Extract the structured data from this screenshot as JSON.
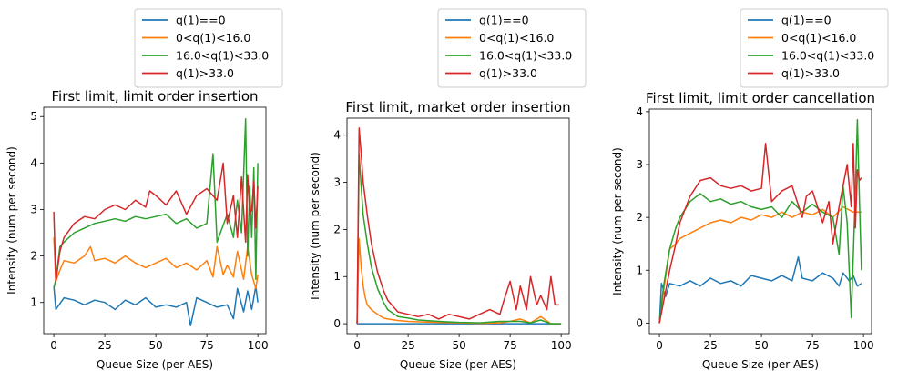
{
  "chart_data": [
    {
      "type": "line",
      "title": "First limit, limit order insertion",
      "xlabel": "Queue Size (per AES)",
      "ylabel": "Intensity (num per second)",
      "xlim": [
        -4.95,
        103.95
      ],
      "ylim": [
        0.33,
        5.2
      ],
      "xticks": [
        0,
        25,
        50,
        75,
        100
      ],
      "yticks": [
        1,
        2,
        3,
        4,
        5
      ],
      "legend_position": "above",
      "series": [
        {
          "name": "q(1)==0",
          "color": "#1f77b4",
          "x": [
            0,
            1,
            5,
            10,
            15,
            20,
            25,
            30,
            35,
            40,
            45,
            50,
            55,
            60,
            65,
            67,
            70,
            75,
            80,
            85,
            88,
            90,
            93,
            95,
            97,
            99,
            100
          ],
          "y": [
            1.35,
            0.85,
            1.1,
            1.05,
            0.95,
            1.05,
            1.0,
            0.85,
            1.05,
            0.95,
            1.1,
            0.9,
            0.95,
            0.9,
            1.0,
            0.5,
            1.1,
            1.0,
            0.9,
            0.95,
            0.65,
            1.3,
            0.8,
            1.25,
            0.85,
            1.35,
            1.0
          ]
        },
        {
          "name": "0<q(1)<16.0",
          "color": "#ff7f0e",
          "x": [
            0,
            1,
            3,
            5,
            10,
            15,
            18,
            20,
            25,
            30,
            35,
            40,
            45,
            50,
            55,
            60,
            65,
            70,
            75,
            78,
            80,
            83,
            85,
            88,
            90,
            93,
            95,
            97,
            99,
            100
          ],
          "y": [
            2.4,
            1.45,
            1.7,
            1.9,
            1.85,
            2.0,
            2.2,
            1.9,
            1.95,
            1.85,
            2.0,
            1.85,
            1.75,
            1.85,
            1.95,
            1.75,
            1.85,
            1.7,
            1.9,
            1.55,
            2.2,
            1.6,
            1.8,
            1.55,
            2.1,
            1.5,
            2.2,
            1.6,
            1.3,
            1.6
          ]
        },
        {
          "name": "16.0<q(1)<33.0",
          "color": "#2ca02c",
          "x": [
            0,
            1,
            3,
            5,
            10,
            15,
            20,
            25,
            30,
            35,
            40,
            45,
            50,
            55,
            60,
            65,
            70,
            75,
            78,
            80,
            85,
            88,
            90,
            92,
            94,
            95,
            96,
            97,
            98,
            99,
            100
          ],
          "y": [
            1.3,
            1.5,
            2.2,
            2.3,
            2.5,
            2.6,
            2.7,
            2.75,
            2.8,
            2.75,
            2.85,
            2.8,
            2.85,
            2.9,
            2.7,
            2.8,
            2.6,
            2.7,
            4.2,
            2.3,
            2.9,
            2.4,
            3.2,
            2.5,
            4.95,
            2.0,
            3.5,
            2.4,
            3.9,
            1.5,
            4.0
          ]
        },
        {
          "name": "q(1)>33.0",
          "color": "#d62728",
          "x": [
            0,
            1,
            3,
            5,
            10,
            15,
            20,
            25,
            30,
            35,
            40,
            45,
            47,
            50,
            55,
            60,
            65,
            70,
            75,
            80,
            83,
            85,
            88,
            90,
            92,
            94,
            95,
            96,
            97,
            98,
            99,
            100
          ],
          "y": [
            2.95,
            1.45,
            2.1,
            2.4,
            2.7,
            2.85,
            2.8,
            3.0,
            3.1,
            3.0,
            3.2,
            3.05,
            3.4,
            3.3,
            3.1,
            3.4,
            2.9,
            3.3,
            3.45,
            3.2,
            4.0,
            2.7,
            3.3,
            2.4,
            3.7,
            2.3,
            3.75,
            2.9,
            3.0,
            3.6,
            2.6,
            3.5
          ]
        }
      ]
    },
    {
      "type": "line",
      "title": "First limit, market order insertion",
      "xlabel": "Queue Size (per AES)",
      "ylabel": "Intensity (num per second)",
      "xlim": [
        -4.95,
        103.95
      ],
      "ylim": [
        -0.21,
        4.36
      ],
      "xticks": [
        0,
        25,
        50,
        75,
        100
      ],
      "yticks": [
        0,
        1,
        2,
        3,
        4
      ],
      "legend_position": "above",
      "series": [
        {
          "name": "q(1)==0",
          "color": "#1f77b4",
          "x": [
            0,
            100
          ],
          "y": [
            0,
            0
          ]
        },
        {
          "name": "0<q(1)<16.0",
          "color": "#ff7f0e",
          "x": [
            0,
            1,
            2,
            3,
            4,
            5,
            7,
            10,
            13,
            15,
            20,
            25,
            30,
            40,
            50,
            60,
            70,
            75,
            80,
            85,
            90,
            95,
            100
          ],
          "y": [
            0,
            1.8,
            1.2,
            0.8,
            0.55,
            0.4,
            0.3,
            0.2,
            0.12,
            0.1,
            0.07,
            0.05,
            0.04,
            0.03,
            0.02,
            0.01,
            0.02,
            0.05,
            0.1,
            0.02,
            0.15,
            0.0,
            0
          ]
        },
        {
          "name": "16.0<q(1)<33.0",
          "color": "#2ca02c",
          "x": [
            0,
            1,
            2,
            3,
            5,
            7,
            10,
            13,
            15,
            20,
            25,
            30,
            40,
            50,
            60,
            70,
            80,
            85,
            90,
            95,
            100
          ],
          "y": [
            0,
            3.6,
            2.9,
            2.3,
            1.7,
            1.2,
            0.75,
            0.45,
            0.3,
            0.15,
            0.12,
            0.08,
            0.05,
            0.03,
            0.02,
            0.05,
            0.05,
            0.02,
            0.08,
            0.0,
            0
          ]
        },
        {
          "name": "q(1)>33.0",
          "color": "#d62728",
          "x": [
            0,
            1,
            2,
            3,
            5,
            7,
            10,
            13,
            15,
            18,
            20,
            25,
            30,
            35,
            40,
            45,
            50,
            55,
            60,
            65,
            70,
            72,
            75,
            78,
            80,
            83,
            85,
            88,
            90,
            93,
            95,
            97,
            99
          ],
          "y": [
            0,
            4.15,
            3.6,
            3.0,
            2.3,
            1.7,
            1.1,
            0.7,
            0.5,
            0.35,
            0.25,
            0.2,
            0.15,
            0.2,
            0.1,
            0.2,
            0.15,
            0.1,
            0.2,
            0.3,
            0.2,
            0.5,
            0.9,
            0.3,
            0.8,
            0.3,
            1.0,
            0.4,
            0.6,
            0.3,
            1.0,
            0.4,
            0.4
          ]
        }
      ]
    },
    {
      "type": "line",
      "title": "First limit, limit order cancellation",
      "xlabel": "Queue Size (per AES)",
      "ylabel": "Intensity (num per second)",
      "xlim": [
        -4.95,
        103.95
      ],
      "ylim": [
        -0.2,
        4.05
      ],
      "xticks": [
        0,
        25,
        50,
        75,
        100
      ],
      "yticks": [
        0,
        1,
        2,
        3,
        4
      ],
      "legend_position": "above",
      "series": [
        {
          "name": "q(1)==0",
          "color": "#1f77b4",
          "x": [
            0,
            1,
            3,
            5,
            10,
            15,
            20,
            25,
            30,
            35,
            40,
            45,
            50,
            55,
            60,
            65,
            68,
            70,
            75,
            80,
            85,
            88,
            90,
            93,
            95,
            97,
            99
          ],
          "y": [
            0,
            0.75,
            0.5,
            0.75,
            0.7,
            0.8,
            0.7,
            0.85,
            0.75,
            0.8,
            0.7,
            0.9,
            0.85,
            0.8,
            0.9,
            0.8,
            1.25,
            0.85,
            0.8,
            0.95,
            0.85,
            0.7,
            0.95,
            0.8,
            0.9,
            0.7,
            0.75
          ]
        },
        {
          "name": "0<q(1)<16.0",
          "color": "#ff7f0e",
          "x": [
            0,
            2,
            5,
            8,
            10,
            15,
            20,
            25,
            30,
            35,
            40,
            45,
            50,
            55,
            60,
            65,
            70,
            75,
            80,
            85,
            90,
            95,
            99
          ],
          "y": [
            0,
            0.6,
            1.4,
            1.5,
            1.6,
            1.7,
            1.8,
            1.9,
            1.95,
            1.9,
            2.0,
            1.95,
            2.05,
            2.0,
            2.1,
            2.0,
            2.1,
            2.05,
            2.15,
            2.0,
            2.2,
            2.1,
            2.1
          ]
        },
        {
          "name": "16.0<q(1)<33.0",
          "color": "#2ca02c",
          "x": [
            0,
            2,
            5,
            8,
            10,
            15,
            20,
            25,
            30,
            35,
            40,
            45,
            50,
            55,
            60,
            65,
            70,
            75,
            80,
            85,
            88,
            90,
            92,
            94,
            96,
            97,
            98,
            99
          ],
          "y": [
            0,
            0.7,
            1.4,
            1.8,
            2.0,
            2.3,
            2.45,
            2.3,
            2.35,
            2.25,
            2.3,
            2.2,
            2.15,
            2.2,
            2.0,
            2.3,
            2.1,
            2.25,
            2.1,
            2.0,
            1.3,
            2.6,
            1.9,
            0.1,
            2.5,
            3.85,
            2.3,
            1.0
          ]
        },
        {
          "name": "q(1)>33.0",
          "color": "#d62728",
          "x": [
            0,
            2,
            5,
            8,
            10,
            15,
            20,
            25,
            30,
            35,
            40,
            45,
            50,
            52,
            55,
            60,
            65,
            70,
            72,
            75,
            80,
            83,
            85,
            88,
            90,
            92,
            94,
            95,
            96,
            97,
            98,
            99
          ],
          "y": [
            0,
            0.4,
            1.0,
            1.5,
            1.9,
            2.4,
            2.7,
            2.75,
            2.6,
            2.55,
            2.6,
            2.5,
            2.55,
            3.4,
            2.3,
            2.5,
            2.6,
            2.0,
            2.4,
            2.5,
            1.9,
            2.3,
            1.5,
            2.2,
            2.6,
            3.0,
            2.2,
            3.4,
            1.8,
            2.9,
            2.7,
            2.75
          ]
        }
      ]
    }
  ]
}
